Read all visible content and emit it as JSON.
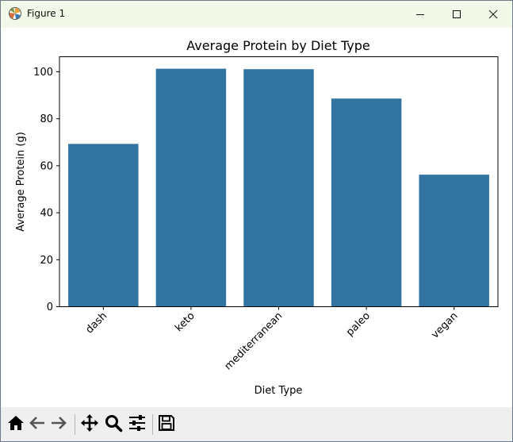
{
  "window": {
    "title": "Figure 1",
    "icons": {
      "app": "matplotlib-icon",
      "minimize": "minimize-icon",
      "maximize": "maximize-icon",
      "close": "close-icon"
    }
  },
  "toolbar": {
    "buttons": [
      {
        "name": "home-button",
        "icon": "home-icon"
      },
      {
        "name": "back-button",
        "icon": "back-arrow-icon"
      },
      {
        "name": "forward-button",
        "icon": "forward-arrow-icon"
      },
      {
        "name": "pan-button",
        "icon": "move-icon"
      },
      {
        "name": "zoom-button",
        "icon": "magnifier-icon"
      },
      {
        "name": "configure-subplots-button",
        "icon": "sliders-icon"
      },
      {
        "name": "save-button",
        "icon": "floppy-disk-icon"
      }
    ]
  },
  "colors": {
    "bar": "#3274a1",
    "titlebar": "#f3f9e9",
    "toolbar": "#efefef"
  },
  "chart_data": {
    "type": "bar",
    "title": "Average Protein by Diet Type",
    "xlabel": "Diet Type",
    "ylabel": "Average Protein (g)",
    "categories": [
      "dash",
      "keto",
      "mediterranean",
      "paleo",
      "vegan"
    ],
    "values": [
      69.3,
      101.3,
      101.1,
      88.6,
      56.2
    ],
    "ylim": [
      0,
      106.4
    ],
    "yticks": [
      "0",
      "20",
      "40",
      "60",
      "80",
      "100"
    ],
    "grid": false,
    "legend": "none",
    "x_tick_rotation": 45
  }
}
